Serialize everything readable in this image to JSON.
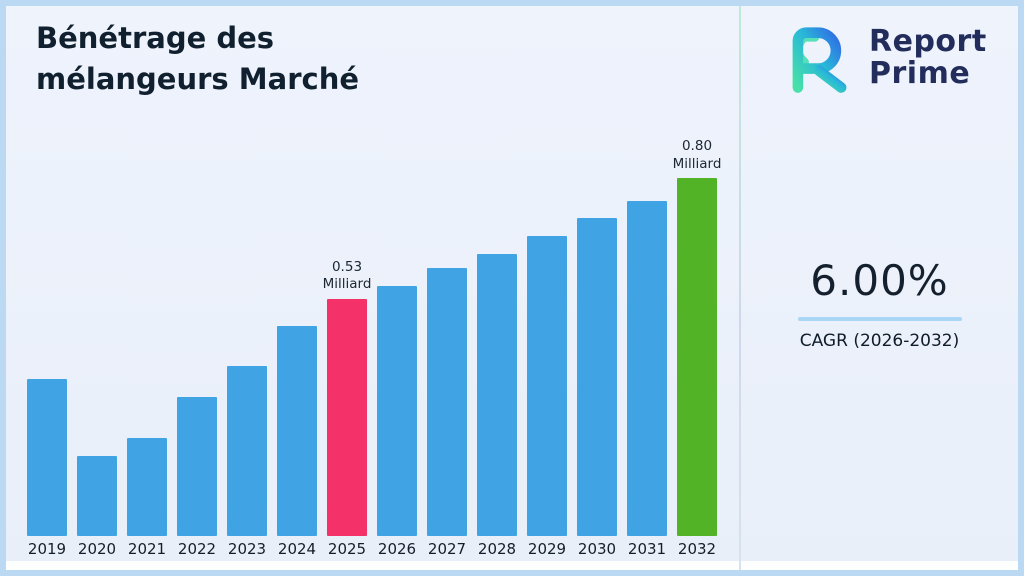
{
  "title": {
    "line1": "Bénétrage des",
    "line2": "mélangeurs Marché"
  },
  "logo": {
    "word1": "Report",
    "word2": "Prime"
  },
  "stat": {
    "value": "6.00%",
    "label": "CAGR (2026-2032)"
  },
  "chart_data": {
    "type": "bar",
    "title": "Bénétrage des mélangeurs Marché",
    "unit": "Milliard",
    "categories": [
      "2019",
      "2020",
      "2021",
      "2022",
      "2023",
      "2024",
      "2025",
      "2026",
      "2027",
      "2028",
      "2029",
      "2030",
      "2031",
      "2032"
    ],
    "values": [
      0.35,
      0.18,
      0.22,
      0.31,
      0.38,
      0.47,
      0.53,
      0.56,
      0.6,
      0.63,
      0.67,
      0.71,
      0.75,
      0.8
    ],
    "bar_default_color": "#3fa3e4",
    "highlights": [
      {
        "index": 6,
        "category": "2025",
        "color": "#f5316a",
        "label_lines": [
          "0.53",
          "Milliard"
        ]
      },
      {
        "index": 13,
        "category": "2032",
        "color": "#52b326",
        "label_lines": [
          "0.80",
          "Milliard"
        ]
      }
    ],
    "xlabel": "",
    "ylabel": "",
    "ylim": [
      0,
      0.89
    ],
    "grid": false,
    "legend": "none"
  },
  "colors": {
    "background": "#eef3fc",
    "frame_border": "#bcd9f4",
    "bar_blue": "#3fa3e4",
    "bar_pink": "#f5316a",
    "bar_green": "#52b326",
    "accent_underline": "#a9d6f5",
    "logo_navy": "#232d5b",
    "logo_gradient_start": "#46e0a8",
    "logo_gradient_end": "#2f6ce6"
  }
}
